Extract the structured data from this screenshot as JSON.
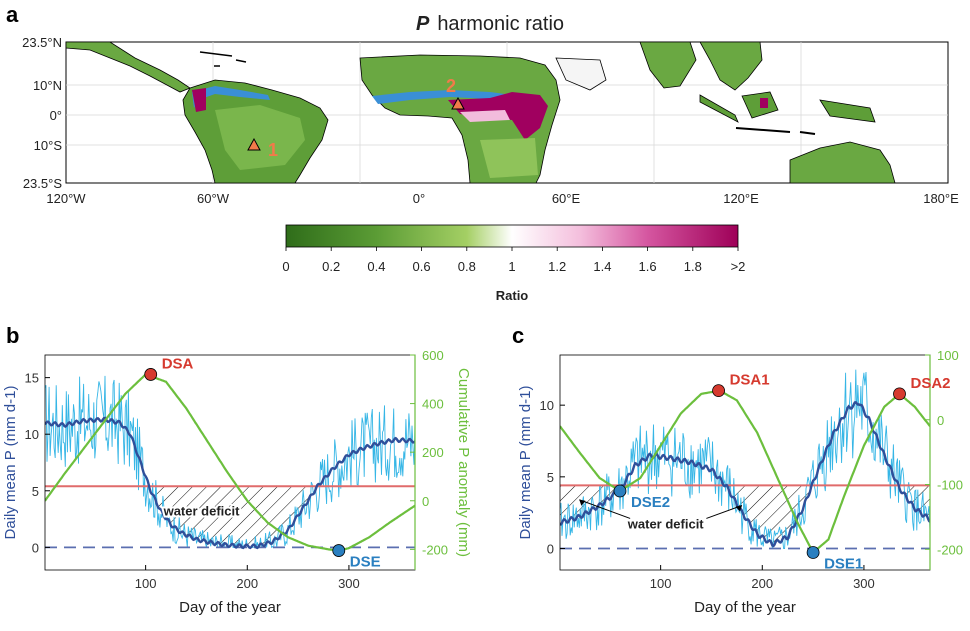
{
  "colors": {
    "land_green_dark": "#2f7d1e",
    "land_green": "#6aa842",
    "land_green_light": "#a6cf6b",
    "ratio_magenta": "#a0005f",
    "ratio_blue": "#3a8fd6",
    "p_raw": "#36b6e6",
    "p_smooth": "#2f4f9a",
    "cum_anomaly": "#6cbf3d",
    "mean_line": "#e06b6b",
    "zero_line": "#5b6fb0",
    "dsa_point": "#d63a2f",
    "dse_point": "#2a7fc0",
    "marker_triangle": "#f27a4a"
  },
  "panel_a": {
    "letter": "a",
    "title_var": "P",
    "title_rest": "harmonic ratio",
    "lat_ticks": [
      "23.5°N",
      "10°N",
      "0°",
      "10°S",
      "23.5°S"
    ],
    "lon_ticks": [
      "120°W",
      "60°W",
      "0°",
      "60°E",
      "120°E",
      "180°E"
    ],
    "site_labels": [
      "1",
      "2"
    ],
    "colorbar": {
      "ticks": [
        "0",
        "0.2",
        "0.4",
        "0.6",
        "0.8",
        "1",
        "1.2",
        "1.4",
        "1.6",
        "1.8",
        ">2"
      ],
      "label": "Ratio"
    }
  },
  "chart_data": [
    {
      "type": "line",
      "panel": "b",
      "xlabel": "Day of the year",
      "ylabel_left": "Daily mean P (mm d-1)",
      "ylabel_right": "Cumulative P anomaly (mm)",
      "xlim": [
        1,
        365
      ],
      "ylim_left": [
        -2,
        17
      ],
      "ylim_right": [
        -285,
        600
      ],
      "xticks": [
        100,
        200,
        300
      ],
      "yticks_left": [
        0,
        5,
        10,
        15
      ],
      "yticks_right": [
        -200,
        0,
        200,
        400,
        600
      ],
      "series": [
        {
          "axis": "left",
          "x": [
            1,
            20,
            40,
            60,
            75,
            85,
            95,
            105,
            115,
            125,
            135,
            150,
            165,
            180,
            195,
            210,
            225,
            240,
            255,
            270,
            285,
            300,
            315,
            330,
            345,
            365
          ],
          "values": [
            11.0,
            10.8,
            11.2,
            11.3,
            11.0,
            10.0,
            7.5,
            5.0,
            3.2,
            2.0,
            1.3,
            0.7,
            0.4,
            0.2,
            0.1,
            0.1,
            0.5,
            1.5,
            3.5,
            5.5,
            7.0,
            8.2,
            8.8,
            9.2,
            9.5,
            9.4
          ]
        },
        {
          "name": "Cumulative P anomaly",
          "axis": "right",
          "x": [
            1,
            20,
            40,
            60,
            80,
            100,
            120,
            140,
            160,
            180,
            200,
            220,
            240,
            260,
            280,
            290,
            300,
            320,
            340,
            365
          ],
          "values": [
            0,
            110,
            220,
            330,
            440,
            520,
            490,
            380,
            250,
            120,
            0,
            -90,
            -150,
            -185,
            -200,
            -205,
            -195,
            -150,
            -90,
            -20
          ]
        }
      ],
      "mean_line_left": 5.4,
      "zero_line_left": 0,
      "points": [
        {
          "label": "DSA",
          "x": 105,
          "y_right": 520
        },
        {
          "label": "DSE",
          "x": 290,
          "y_right": -205
        }
      ],
      "annotations": [
        "water deficit"
      ]
    },
    {
      "type": "line",
      "panel": "c",
      "xlabel": "Day of the year",
      "ylabel_left": "Daily mean P (mm d-1)",
      "ylabel_right": "Cumulative P anomaly (mm)",
      "xlim": [
        1,
        365
      ],
      "ylim_left": [
        -1.5,
        13.5
      ],
      "ylim_right": [
        -232,
        100
      ],
      "xticks": [
        100,
        200,
        300
      ],
      "yticks_left": [
        0,
        5,
        10
      ],
      "yticks_right": [
        -200,
        -100,
        0,
        100
      ],
      "series": [
        {
          "axis": "left",
          "x": [
            1,
            20,
            40,
            60,
            75,
            90,
            110,
            130,
            150,
            165,
            180,
            195,
            210,
            225,
            240,
            255,
            270,
            285,
            295,
            305,
            320,
            335,
            350,
            365
          ],
          "values": [
            1.8,
            2.2,
            3.0,
            4.1,
            5.8,
            6.5,
            6.3,
            6.0,
            5.5,
            4.3,
            2.5,
            1.0,
            0.3,
            0.8,
            2.8,
            5.5,
            8.0,
            9.8,
            10.2,
            9.0,
            6.5,
            4.2,
            2.8,
            2.0
          ]
        },
        {
          "name": "Cumulative P anomaly",
          "axis": "right",
          "x": [
            1,
            20,
            40,
            60,
            80,
            100,
            120,
            140,
            158,
            175,
            195,
            215,
            235,
            250,
            265,
            280,
            300,
            320,
            335,
            350,
            365
          ],
          "values": [
            -10,
            -50,
            -90,
            -110,
            -90,
            -40,
            10,
            40,
            45,
            30,
            -20,
            -90,
            -160,
            -205,
            -185,
            -120,
            -40,
            20,
            40,
            20,
            -10
          ]
        }
      ],
      "mean_line_left": 4.4,
      "zero_line_left": 0,
      "points": [
        {
          "label": "DSA1",
          "x": 157,
          "y_right": 45
        },
        {
          "label": "DSA2",
          "x": 335,
          "y_right": 40
        },
        {
          "label": "DSE1",
          "x": 250,
          "y_right": -205
        },
        {
          "label": "DSE2",
          "x": 60,
          "y_right": -110
        }
      ],
      "annotations": [
        "water deficit"
      ]
    }
  ]
}
